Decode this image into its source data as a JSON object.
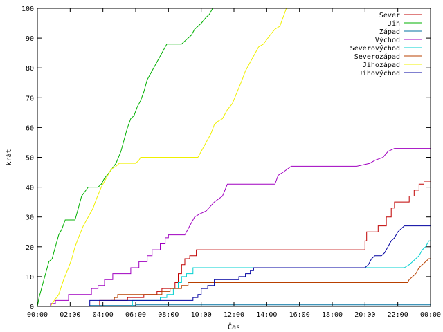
{
  "chart_data": {
    "type": "line",
    "title": "",
    "xlabel": "Čas",
    "ylabel": "krát",
    "xlim": [
      0,
      24
    ],
    "ylim": [
      0,
      100
    ],
    "grid": false,
    "legend_position": "top-right",
    "x_tick_labels": [
      "00:00",
      "02:00",
      "04:00",
      "06:00",
      "08:00",
      "10:00",
      "12:00",
      "14:00",
      "16:00",
      "18:00",
      "20:00",
      "22:00",
      "00:00"
    ],
    "y_tick_labels": [
      "0",
      "10",
      "20",
      "30",
      "40",
      "50",
      "60",
      "70",
      "80",
      "90",
      "100"
    ],
    "series": [
      {
        "name": "Sever",
        "color": "#c00000",
        "points": [
          [
            0,
            0
          ],
          [
            3.8,
            0
          ],
          [
            3.8,
            2
          ],
          [
            5.5,
            2
          ],
          [
            5.5,
            3
          ],
          [
            6.5,
            3
          ],
          [
            6.5,
            4
          ],
          [
            7.3,
            4
          ],
          [
            7.3,
            5
          ],
          [
            7.6,
            5
          ],
          [
            7.6,
            6
          ],
          [
            8.4,
            6
          ],
          [
            8.4,
            8
          ],
          [
            8.6,
            8
          ],
          [
            8.6,
            11
          ],
          [
            8.8,
            11
          ],
          [
            8.8,
            14
          ],
          [
            9,
            14
          ],
          [
            9,
            16
          ],
          [
            9.3,
            16
          ],
          [
            9.3,
            17
          ],
          [
            9.7,
            17
          ],
          [
            9.7,
            19
          ],
          [
            11,
            19
          ],
          [
            20,
            19
          ],
          [
            20,
            22
          ],
          [
            20.1,
            22
          ],
          [
            20.1,
            25
          ],
          [
            20.8,
            25
          ],
          [
            20.8,
            27
          ],
          [
            21.3,
            27
          ],
          [
            21.3,
            30
          ],
          [
            21.6,
            30
          ],
          [
            21.6,
            33
          ],
          [
            21.8,
            33
          ],
          [
            21.8,
            35
          ],
          [
            22.7,
            35
          ],
          [
            22.7,
            37
          ],
          [
            23,
            37
          ],
          [
            23,
            39
          ],
          [
            23.3,
            39
          ],
          [
            23.3,
            41
          ],
          [
            23.6,
            41
          ],
          [
            23.6,
            42
          ],
          [
            24,
            42
          ]
        ]
      },
      {
        "name": "Jih",
        "color": "#00b000",
        "points": [
          [
            0,
            0
          ],
          [
            0.1,
            3
          ],
          [
            0.3,
            7
          ],
          [
            0.5,
            11
          ],
          [
            0.7,
            15
          ],
          [
            0.9,
            16
          ],
          [
            1.1,
            20
          ],
          [
            1.3,
            24
          ],
          [
            1.5,
            26
          ],
          [
            1.7,
            29
          ],
          [
            2.3,
            29
          ],
          [
            2.5,
            33
          ],
          [
            2.7,
            37
          ],
          [
            3.1,
            40
          ],
          [
            3.7,
            40
          ],
          [
            3.9,
            41
          ],
          [
            4.1,
            43
          ],
          [
            4.4,
            45
          ],
          [
            4.8,
            48
          ],
          [
            5.1,
            52
          ],
          [
            5.3,
            56
          ],
          [
            5.5,
            60
          ],
          [
            5.7,
            63
          ],
          [
            5.9,
            64
          ],
          [
            6.1,
            67
          ],
          [
            6.3,
            69
          ],
          [
            6.5,
            72
          ],
          [
            6.7,
            76
          ],
          [
            6.9,
            78
          ],
          [
            7.2,
            81
          ],
          [
            7.5,
            84
          ],
          [
            7.8,
            87
          ],
          [
            7.9,
            88
          ],
          [
            8.8,
            88
          ],
          [
            9,
            89
          ],
          [
            9.2,
            90
          ],
          [
            9.4,
            91
          ],
          [
            9.6,
            93
          ],
          [
            10,
            95
          ],
          [
            10.3,
            97
          ],
          [
            10.5,
            98
          ],
          [
            10.7,
            100
          ],
          [
            11,
            100
          ]
        ]
      },
      {
        "name": "Západ",
        "color": "#0070a0",
        "points": [
          [
            0,
            0
          ],
          [
            3.2,
            0
          ],
          [
            3.2,
            0.3
          ],
          [
            6,
            0.3
          ],
          [
            6,
            0.5
          ],
          [
            24,
            0.5
          ]
        ]
      },
      {
        "name": "Východ",
        "color": "#a000c0",
        "points": [
          [
            0,
            0
          ],
          [
            0.8,
            0
          ],
          [
            0.8,
            1
          ],
          [
            1.1,
            1
          ],
          [
            1.1,
            2
          ],
          [
            1.9,
            2
          ],
          [
            1.9,
            4
          ],
          [
            3.3,
            4
          ],
          [
            3.3,
            6
          ],
          [
            3.7,
            6
          ],
          [
            3.7,
            7
          ],
          [
            4.1,
            7
          ],
          [
            4.1,
            9
          ],
          [
            4.6,
            9
          ],
          [
            4.6,
            11
          ],
          [
            5.7,
            11
          ],
          [
            5.7,
            13
          ],
          [
            6.2,
            13
          ],
          [
            6.2,
            15
          ],
          [
            6.7,
            15
          ],
          [
            6.7,
            17
          ],
          [
            7,
            17
          ],
          [
            7,
            19
          ],
          [
            7.5,
            19
          ],
          [
            7.5,
            21
          ],
          [
            7.8,
            21
          ],
          [
            7.8,
            23
          ],
          [
            8,
            23
          ],
          [
            8,
            24
          ],
          [
            9,
            24
          ],
          [
            9.3,
            27
          ],
          [
            9.6,
            30
          ],
          [
            9.9,
            31
          ],
          [
            10.3,
            32
          ],
          [
            10.8,
            35
          ],
          [
            11.3,
            37
          ],
          [
            11.6,
            41
          ],
          [
            14.5,
            41
          ],
          [
            14.7,
            44
          ],
          [
            15,
            45
          ],
          [
            15.5,
            47
          ],
          [
            19.5,
            47
          ],
          [
            20.3,
            48
          ],
          [
            20.6,
            49
          ],
          [
            21.1,
            50
          ],
          [
            21.4,
            52
          ],
          [
            21.8,
            53
          ],
          [
            24,
            53
          ]
        ]
      },
      {
        "name": "Severovýchod",
        "color": "#00d0d0",
        "points": [
          [
            0,
            0
          ],
          [
            5.8,
            0
          ],
          [
            5.8,
            2
          ],
          [
            7.5,
            2
          ],
          [
            7.5,
            3
          ],
          [
            7.9,
            3
          ],
          [
            7.9,
            4
          ],
          [
            8.3,
            4
          ],
          [
            8.3,
            6
          ],
          [
            8.6,
            6
          ],
          [
            8.6,
            8
          ],
          [
            8.8,
            8
          ],
          [
            8.8,
            10
          ],
          [
            9.1,
            10
          ],
          [
            9.1,
            11
          ],
          [
            9.5,
            11
          ],
          [
            9.5,
            13
          ],
          [
            12,
            13
          ],
          [
            20,
            13
          ],
          [
            20.4,
            13
          ],
          [
            22.4,
            13
          ],
          [
            22.7,
            14
          ],
          [
            22.9,
            15
          ],
          [
            23.1,
            16
          ],
          [
            23.3,
            17
          ],
          [
            23.5,
            19
          ],
          [
            23.7,
            20
          ],
          [
            23.9,
            22
          ],
          [
            24,
            22
          ]
        ]
      },
      {
        "name": "Severozápad",
        "color": "#b84000",
        "points": [
          [
            0,
            0
          ],
          [
            4.5,
            0
          ],
          [
            4.5,
            2
          ],
          [
            4.7,
            2
          ],
          [
            4.7,
            3
          ],
          [
            4.9,
            3
          ],
          [
            4.9,
            4
          ],
          [
            7.6,
            4
          ],
          [
            7.6,
            5
          ],
          [
            8.1,
            5
          ],
          [
            8.1,
            6
          ],
          [
            8.8,
            6
          ],
          [
            8.8,
            7
          ],
          [
            9.2,
            7
          ],
          [
            9.2,
            8
          ],
          [
            15,
            8
          ],
          [
            22.6,
            8
          ],
          [
            22.7,
            9
          ],
          [
            22.9,
            10
          ],
          [
            23.1,
            11
          ],
          [
            23.3,
            13
          ],
          [
            23.5,
            14
          ],
          [
            23.7,
            15
          ],
          [
            23.9,
            16
          ],
          [
            24,
            16
          ]
        ]
      },
      {
        "name": "Jihozápad",
        "color": "#f0f000",
        "points": [
          [
            0,
            0
          ],
          [
            0.8,
            0
          ],
          [
            0.9,
            1
          ],
          [
            1.3,
            4
          ],
          [
            1.6,
            9
          ],
          [
            1.9,
            13
          ],
          [
            2.1,
            16
          ],
          [
            2.3,
            20
          ],
          [
            2.5,
            23
          ],
          [
            2.8,
            27
          ],
          [
            3.1,
            30
          ],
          [
            3.4,
            33
          ],
          [
            3.6,
            36
          ],
          [
            3.9,
            40
          ],
          [
            4.2,
            43
          ],
          [
            4.5,
            46
          ],
          [
            4.8,
            47
          ],
          [
            5,
            48
          ],
          [
            6,
            48
          ],
          [
            6.2,
            49
          ],
          [
            6.3,
            50
          ],
          [
            9.8,
            50
          ],
          [
            10.1,
            53
          ],
          [
            10.3,
            55
          ],
          [
            10.6,
            58
          ],
          [
            10.8,
            61
          ],
          [
            11,
            62
          ],
          [
            11.3,
            63
          ],
          [
            11.6,
            66
          ],
          [
            11.9,
            68
          ],
          [
            12.2,
            72
          ],
          [
            12.5,
            76
          ],
          [
            12.7,
            79
          ],
          [
            13,
            82
          ],
          [
            13.3,
            85
          ],
          [
            13.5,
            87
          ],
          [
            13.8,
            88
          ],
          [
            14.2,
            91
          ],
          [
            14.5,
            93
          ],
          [
            14.8,
            94
          ],
          [
            15,
            97
          ],
          [
            15.2,
            100
          ],
          [
            15.4,
            100
          ]
        ]
      },
      {
        "name": "Jihovýchod",
        "color": "#0000a0",
        "points": [
          [
            0,
            0
          ],
          [
            3.2,
            0
          ],
          [
            3.2,
            2
          ],
          [
            9.5,
            2
          ],
          [
            9.5,
            3
          ],
          [
            9.8,
            3
          ],
          [
            9.8,
            4
          ],
          [
            10,
            4
          ],
          [
            10,
            6
          ],
          [
            10.4,
            6
          ],
          [
            10.4,
            7
          ],
          [
            10.8,
            7
          ],
          [
            10.8,
            9
          ],
          [
            12.3,
            9
          ],
          [
            12.3,
            10
          ],
          [
            12.7,
            10
          ],
          [
            12.7,
            11
          ],
          [
            13,
            11
          ],
          [
            13,
            12
          ],
          [
            13.2,
            12
          ],
          [
            13.2,
            13
          ],
          [
            20,
            13
          ],
          [
            20.2,
            14
          ],
          [
            20.4,
            16
          ],
          [
            20.6,
            17
          ],
          [
            21,
            17
          ],
          [
            21.2,
            18
          ],
          [
            21.4,
            20
          ],
          [
            21.6,
            22
          ],
          [
            21.8,
            23
          ],
          [
            22,
            25
          ],
          [
            22.2,
            26
          ],
          [
            22.4,
            27
          ],
          [
            24,
            27
          ]
        ]
      }
    ]
  }
}
